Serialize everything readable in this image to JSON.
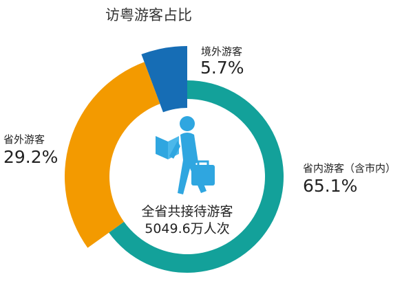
{
  "chart_data": {
    "type": "pie",
    "title": "访粤游客占比",
    "categories": [
      "省内游客（含市内）",
      "省外游客",
      "境外游客"
    ],
    "values": [
      65.1,
      29.2,
      5.7
    ],
    "value_labels": [
      "65.1%",
      "29.2%",
      "5.7%"
    ],
    "colors": [
      "#13a19a",
      "#f39a00",
      "#166db5"
    ],
    "donut": true,
    "center_text": [
      "全省共接待游客",
      "5049.6万人次"
    ],
    "center_icon": "traveler-with-map-and-briefcase-icon",
    "icon_color": "#2fa6e0"
  }
}
